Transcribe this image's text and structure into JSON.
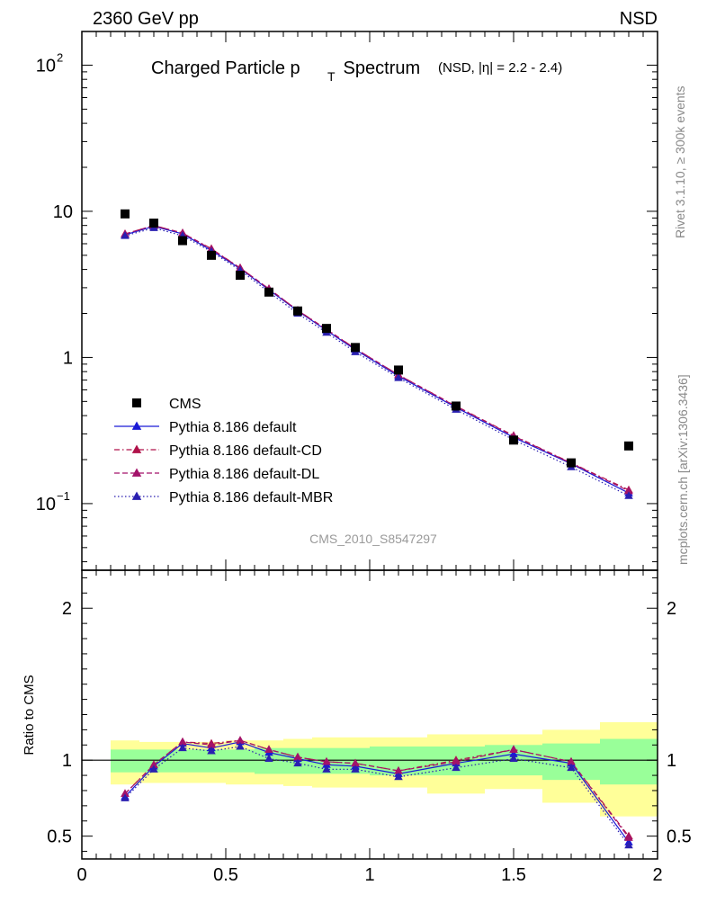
{
  "header": {
    "energy_label": "2360 GeV pp",
    "process_label": "NSD"
  },
  "side": {
    "rivet": "Rivet 3.1.10, ≥ 300k events",
    "mcplots": "mcplots.cern.ch [arXiv:1306.3436]"
  },
  "chart_data": [
    {
      "type": "scatter",
      "role": "main-spectrum",
      "title": "Charged Particle p",
      "title_sub": "T",
      "title_tail": " Spectrum",
      "title_small": "(NSD, |η| = 2.2 - 2.4)",
      "watermark": "CMS_2010_S8547297",
      "yscale": "log",
      "xlim": [
        0,
        2
      ],
      "ylim": [
        0.035,
        170
      ],
      "ytick_labels": [
        {
          "v": 100,
          "base": "10",
          "exp": "2"
        },
        {
          "v": 10,
          "base": "10",
          "exp": ""
        },
        {
          "v": 1,
          "base": "1",
          "exp": ""
        },
        {
          "v": 0.1,
          "base": "10",
          "exp": "−1"
        }
      ],
      "x": [
        0.15,
        0.25,
        0.35,
        0.45,
        0.55,
        0.65,
        0.75,
        0.85,
        0.95,
        1.1,
        1.3,
        1.5,
        1.7,
        1.9
      ],
      "data": {
        "name": "CMS",
        "color": "#000000",
        "values": [
          9.6,
          8.3,
          6.3,
          5.0,
          3.65,
          2.8,
          2.08,
          1.58,
          1.17,
          0.82,
          0.465,
          0.272,
          0.19,
          0.248
        ]
      },
      "series": [
        {
          "name": "Pythia 8.186 default",
          "color": "#1a1ad6",
          "dash": "solid",
          "values": [
            6.9,
            7.9,
            7.0,
            5.4,
            4.05,
            2.9,
            2.08,
            1.53,
            1.13,
            0.745,
            0.455,
            0.284,
            0.187,
            0.118
          ]
        },
        {
          "name": "Pythia 8.186 default-CD",
          "color": "#b0124a",
          "dash": "dashdot",
          "values": [
            7.0,
            8.0,
            7.1,
            5.55,
            4.1,
            2.95,
            2.1,
            1.56,
            1.15,
            0.76,
            0.465,
            0.292,
            0.19,
            0.124
          ]
        },
        {
          "name": "Pythia 8.186 default-DL",
          "color": "#a3126a",
          "dash": "dashed",
          "values": [
            7.0,
            8.0,
            7.1,
            5.5,
            4.1,
            2.95,
            2.1,
            1.55,
            1.15,
            0.76,
            0.462,
            0.29,
            0.189,
            0.122
          ]
        },
        {
          "name": "Pythia 8.186 default-MBR",
          "color": "#2a1fb0",
          "dash": "dotted",
          "values": [
            6.8,
            7.7,
            6.8,
            5.3,
            3.95,
            2.8,
            2.0,
            1.48,
            1.09,
            0.725,
            0.44,
            0.273,
            0.178,
            0.113
          ]
        }
      ]
    },
    {
      "type": "line",
      "role": "ratio",
      "ylabel": "Ratio to CMS",
      "xlim": [
        0,
        2
      ],
      "ylim": [
        0.35,
        2.25
      ],
      "xtick_labels": [
        {
          "v": 0,
          "t": "0"
        },
        {
          "v": 0.5,
          "t": "0.5"
        },
        {
          "v": 1,
          "t": "1"
        },
        {
          "v": 1.5,
          "t": "1.5"
        },
        {
          "v": 2,
          "t": "2"
        }
      ],
      "ytick_labels": [
        {
          "v": 2,
          "t": "2"
        },
        {
          "v": 1,
          "t": "1"
        },
        {
          "v": 0.5,
          "t": "0.5"
        }
      ],
      "bins": [
        [
          0.1,
          0.2
        ],
        [
          0.2,
          0.3
        ],
        [
          0.3,
          0.4
        ],
        [
          0.4,
          0.5
        ],
        [
          0.5,
          0.6
        ],
        [
          0.6,
          0.7
        ],
        [
          0.7,
          0.8
        ],
        [
          0.8,
          0.9
        ],
        [
          0.9,
          1.0
        ],
        [
          1.0,
          1.2
        ],
        [
          1.2,
          1.4
        ],
        [
          1.4,
          1.6
        ],
        [
          1.6,
          1.8
        ],
        [
          1.8,
          2.0
        ]
      ],
      "band_outer": [
        [
          0.84,
          1.13
        ],
        [
          0.85,
          1.12
        ],
        [
          0.85,
          1.12
        ],
        [
          0.85,
          1.12
        ],
        [
          0.84,
          1.13
        ],
        [
          0.84,
          1.13
        ],
        [
          0.83,
          1.14
        ],
        [
          0.82,
          1.15
        ],
        [
          0.82,
          1.15
        ],
        [
          0.82,
          1.15
        ],
        [
          0.78,
          1.17
        ],
        [
          0.81,
          1.17
        ],
        [
          0.72,
          1.2
        ],
        [
          0.63,
          1.25
        ]
      ],
      "band_inner": [
        [
          0.92,
          1.07
        ],
        [
          0.92,
          1.07
        ],
        [
          0.92,
          1.07
        ],
        [
          0.92,
          1.07
        ],
        [
          0.92,
          1.07
        ],
        [
          0.91,
          1.08
        ],
        [
          0.91,
          1.08
        ],
        [
          0.91,
          1.08
        ],
        [
          0.91,
          1.08
        ],
        [
          0.9,
          1.09
        ],
        [
          0.9,
          1.09
        ],
        [
          0.9,
          1.1
        ],
        [
          0.87,
          1.11
        ],
        [
          0.84,
          1.14
        ]
      ],
      "x": [
        0.15,
        0.25,
        0.35,
        0.45,
        0.55,
        0.65,
        0.75,
        0.85,
        0.95,
        1.1,
        1.3,
        1.5,
        1.7,
        1.9
      ],
      "series": [
        {
          "name": "Pythia 8.186 default",
          "color": "#1a1ad6",
          "dash": "solid",
          "values": [
            0.76,
            0.96,
            1.11,
            1.08,
            1.12,
            1.05,
            1.01,
            0.97,
            0.96,
            0.91,
            0.98,
            1.04,
            0.98,
            0.46
          ]
        },
        {
          "name": "Pythia 8.186 default-CD",
          "color": "#b0124a",
          "dash": "dashdot",
          "values": [
            0.78,
            0.97,
            1.12,
            1.11,
            1.13,
            1.07,
            1.02,
            0.99,
            0.98,
            0.93,
            1.0,
            1.07,
            0.99,
            0.5
          ]
        },
        {
          "name": "Pythia 8.186 default-DL",
          "color": "#a3126a",
          "dash": "dashed",
          "values": [
            0.78,
            0.97,
            1.12,
            1.1,
            1.13,
            1.07,
            1.02,
            0.99,
            0.98,
            0.93,
            0.99,
            1.07,
            0.99,
            0.49
          ]
        },
        {
          "name": "Pythia 8.186 default-MBR",
          "color": "#2a1fb0",
          "dash": "dotted",
          "values": [
            0.75,
            0.94,
            1.08,
            1.06,
            1.09,
            1.01,
            0.98,
            0.94,
            0.94,
            0.89,
            0.95,
            1.01,
            0.95,
            0.44
          ]
        }
      ]
    }
  ]
}
